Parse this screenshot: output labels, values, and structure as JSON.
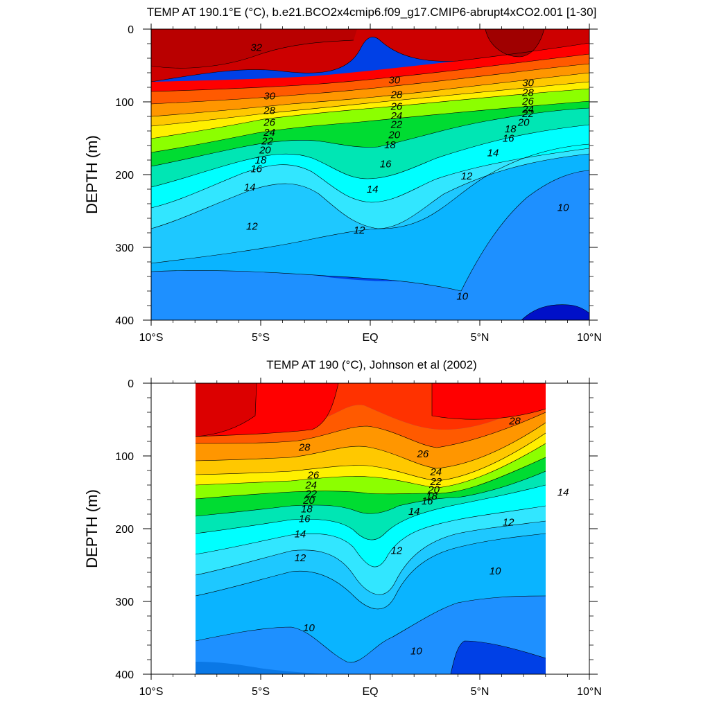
{
  "chart_data": [
    {
      "type": "contour",
      "title": "TEMP AT 190.1°E (°C), b.e21.BCO2x4cmip6.f09_g17.CMIP6-abrupt4xCO2.001 [1-30]",
      "ylabel": "DEPTH (m)",
      "xlabel": "",
      "xlim": [
        -10,
        10
      ],
      "ylim": [
        400,
        0
      ],
      "x_ticks": [
        -10,
        -5,
        0,
        5,
        10
      ],
      "x_tick_labels": [
        "10°S",
        "5°S",
        "EQ",
        "5°N",
        "10°N"
      ],
      "y_ticks": [
        0,
        100,
        200,
        300,
        400
      ],
      "y_tick_labels": [
        "0",
        "100",
        "200",
        "300",
        "400"
      ],
      "data_xrange": [
        -10,
        10
      ],
      "contour_interval": 1,
      "isotherm_labels": [
        {
          "text": "32",
          "x": -5.2,
          "y": 25
        },
        {
          "text": "30",
          "x": -4.6,
          "y": 92
        },
        {
          "text": "28",
          "x": -4.6,
          "y": 112
        },
        {
          "text": "26",
          "x": -4.6,
          "y": 128
        },
        {
          "text": "24",
          "x": -4.6,
          "y": 142
        },
        {
          "text": "22",
          "x": -4.7,
          "y": 154
        },
        {
          "text": "20",
          "x": -4.8,
          "y": 166
        },
        {
          "text": "18",
          "x": -5.0,
          "y": 180
        },
        {
          "text": "16",
          "x": -5.2,
          "y": 192
        },
        {
          "text": "14",
          "x": -5.5,
          "y": 217
        },
        {
          "text": "12",
          "x": -5.4,
          "y": 271
        },
        {
          "text": "30",
          "x": 1.1,
          "y": 70
        },
        {
          "text": "28",
          "x": 1.2,
          "y": 90
        },
        {
          "text": "26",
          "x": 1.2,
          "y": 106
        },
        {
          "text": "24",
          "x": 1.2,
          "y": 119
        },
        {
          "text": "22",
          "x": 1.2,
          "y": 131
        },
        {
          "text": "20",
          "x": 1.1,
          "y": 145
        },
        {
          "text": "18",
          "x": 0.9,
          "y": 159
        },
        {
          "text": "16",
          "x": 0.7,
          "y": 185
        },
        {
          "text": "14",
          "x": 0.1,
          "y": 220
        },
        {
          "text": "12",
          "x": -0.5,
          "y": 276
        },
        {
          "text": "30",
          "x": 7.2,
          "y": 74
        },
        {
          "text": "28",
          "x": 7.2,
          "y": 87
        },
        {
          "text": "26",
          "x": 7.2,
          "y": 99
        },
        {
          "text": "24",
          "x": 7.2,
          "y": 110
        },
        {
          "text": "22",
          "x": 7.2,
          "y": 116
        },
        {
          "text": "20",
          "x": 7.0,
          "y": 128
        },
        {
          "text": "18",
          "x": 6.4,
          "y": 137
        },
        {
          "text": "16",
          "x": 6.3,
          "y": 150
        },
        {
          "text": "14",
          "x": 5.6,
          "y": 170
        },
        {
          "text": "12",
          "x": 4.4,
          "y": 202
        },
        {
          "text": "10",
          "x": 8.8,
          "y": 245
        },
        {
          "text": "10",
          "x": 4.2,
          "y": 367
        }
      ]
    },
    {
      "type": "contour",
      "title": "TEMP AT 190 (°C), Johnson et al (2002)",
      "ylabel": "DEPTH (m)",
      "xlabel": "",
      "xlim": [
        -10,
        10
      ],
      "ylim": [
        400,
        0
      ],
      "x_ticks": [
        -10,
        -5,
        0,
        5,
        10
      ],
      "x_tick_labels": [
        "10°S",
        "5°S",
        "EQ",
        "5°N",
        "10°N"
      ],
      "y_ticks": [
        0,
        100,
        200,
        300,
        400
      ],
      "y_tick_labels": [
        "0",
        "100",
        "200",
        "300",
        "400"
      ],
      "data_xrange": [
        -8,
        8
      ],
      "contour_interval": 1,
      "isotherm_labels": [
        {
          "text": "28",
          "x": -3.0,
          "y": 88
        },
        {
          "text": "26",
          "x": -2.6,
          "y": 126
        },
        {
          "text": "24",
          "x": -2.7,
          "y": 140
        },
        {
          "text": "22",
          "x": -2.7,
          "y": 152
        },
        {
          "text": "20",
          "x": -2.8,
          "y": 161
        },
        {
          "text": "18",
          "x": -2.9,
          "y": 173
        },
        {
          "text": "16",
          "x": -3.0,
          "y": 186
        },
        {
          "text": "14",
          "x": -3.2,
          "y": 207
        },
        {
          "text": "12",
          "x": -3.2,
          "y": 240
        },
        {
          "text": "10",
          "x": -2.8,
          "y": 336
        },
        {
          "text": "28",
          "x": 6.6,
          "y": 52
        },
        {
          "text": "26",
          "x": 2.4,
          "y": 97
        },
        {
          "text": "24",
          "x": 3.0,
          "y": 122
        },
        {
          "text": "22",
          "x": 3.0,
          "y": 135
        },
        {
          "text": "20",
          "x": 2.9,
          "y": 146
        },
        {
          "text": "18",
          "x": 2.8,
          "y": 155
        },
        {
          "text": "16",
          "x": 2.6,
          "y": 162
        },
        {
          "text": "14",
          "x": 2.0,
          "y": 176
        },
        {
          "text": "12",
          "x": 1.2,
          "y": 230
        },
        {
          "text": "12",
          "x": 6.3,
          "y": 191
        },
        {
          "text": "14",
          "x": 8.8,
          "y": 150
        },
        {
          "text": "10",
          "x": 5.7,
          "y": 258
        },
        {
          "text": "10",
          "x": 2.1,
          "y": 368
        }
      ]
    }
  ]
}
